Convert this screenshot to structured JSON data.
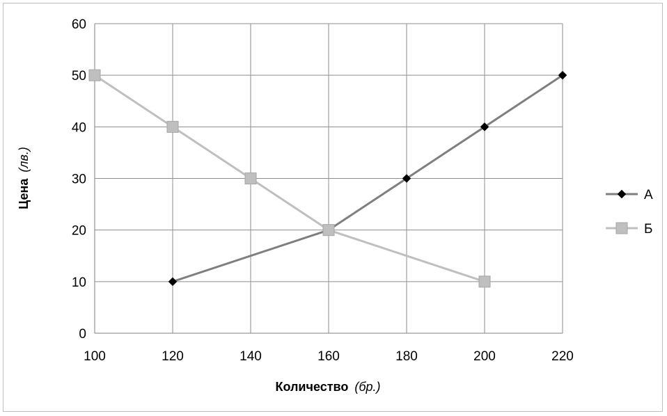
{
  "chart_data": {
    "type": "line",
    "xlabel": "Количество",
    "xlabel_unit": "(бр.)",
    "ylabel": "Цена",
    "ylabel_unit": "(лв.)",
    "xlim": [
      100,
      220
    ],
    "ylim": [
      0,
      60
    ],
    "x_ticks": [
      100,
      120,
      140,
      160,
      180,
      200,
      220
    ],
    "y_ticks": [
      0,
      10,
      20,
      30,
      40,
      50,
      60
    ],
    "grid": true,
    "legend_position": "right",
    "series": [
      {
        "name": "А",
        "color": "#7f7f7f",
        "marker": "diamond",
        "x": [
          120,
          160,
          180,
          200,
          220
        ],
        "y": [
          10,
          20,
          30,
          40,
          50
        ]
      },
      {
        "name": "Б",
        "color": "#bfbfbf",
        "marker": "square",
        "x": [
          100,
          120,
          140,
          160,
          200
        ],
        "y": [
          50,
          40,
          30,
          20,
          10
        ]
      }
    ]
  }
}
